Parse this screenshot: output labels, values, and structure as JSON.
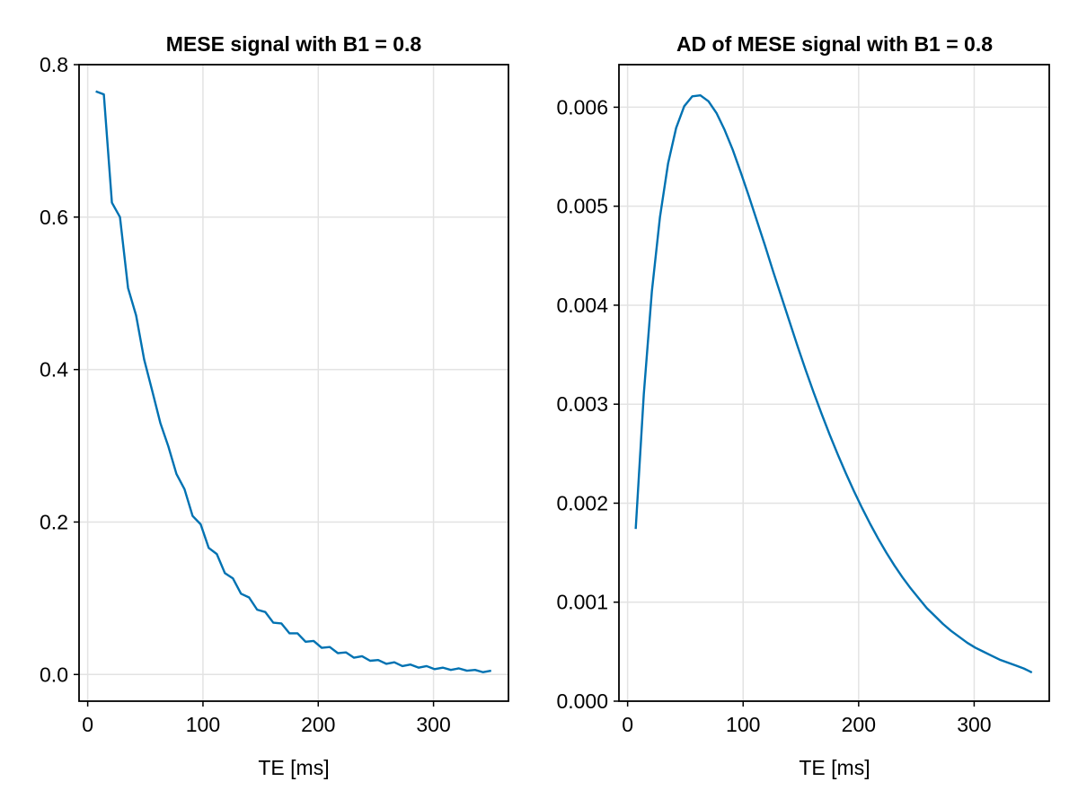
{
  "colors": {
    "series": "#0072b2"
  },
  "chart_data": [
    {
      "type": "line",
      "title": "MESE signal with B1 = 0.8",
      "xlabel": "TE [ms]",
      "ylabel": "",
      "xlim": [
        -7.5,
        365
      ],
      "ylim": [
        -0.035,
        0.8
      ],
      "xticks": [
        0,
        100,
        200,
        300
      ],
      "xtick_labels": [
        "0",
        "100",
        "200",
        "300"
      ],
      "yticks": [
        0.0,
        0.2,
        0.4,
        0.6,
        0.8
      ],
      "ytick_labels": [
        "0.0",
        "0.2",
        "0.4",
        "0.6",
        "0.8"
      ],
      "grid": true,
      "series": [
        {
          "x": [
            7,
            14,
            21,
            28,
            35,
            42,
            49,
            56,
            63,
            70,
            77,
            84,
            91,
            98,
            105,
            112,
            119,
            126,
            133,
            140,
            147,
            154,
            161,
            168,
            175,
            182,
            189,
            196,
            203,
            210,
            217,
            224,
            231,
            238,
            245,
            252,
            259,
            266,
            273,
            280,
            287,
            294,
            301,
            308,
            315,
            322,
            329,
            336,
            343,
            350
          ],
          "y": [
            0.765,
            0.761,
            0.619,
            0.6,
            0.507,
            0.471,
            0.413,
            0.372,
            0.33,
            0.299,
            0.263,
            0.243,
            0.208,
            0.197,
            0.166,
            0.158,
            0.133,
            0.126,
            0.106,
            0.101,
            0.085,
            0.082,
            0.068,
            0.067,
            0.054,
            0.054,
            0.043,
            0.044,
            0.035,
            0.036,
            0.028,
            0.029,
            0.022,
            0.024,
            0.018,
            0.019,
            0.014,
            0.016,
            0.011,
            0.013,
            0.009,
            0.011,
            0.007,
            0.009,
            0.006,
            0.008,
            0.005,
            0.006,
            0.003,
            0.005
          ]
        }
      ]
    },
    {
      "type": "line",
      "title": "AD of MESE signal with B1 = 0.8",
      "xlabel": "TE [ms]",
      "ylabel": "",
      "xlim": [
        -7.5,
        365
      ],
      "ylim": [
        0.0,
        0.00643
      ],
      "xticks": [
        0,
        100,
        200,
        300
      ],
      "xtick_labels": [
        "0",
        "100",
        "200",
        "300"
      ],
      "yticks": [
        0.0,
        0.001,
        0.002,
        0.003,
        0.004,
        0.005,
        0.006
      ],
      "ytick_labels": [
        "0.000",
        "0.001",
        "0.002",
        "0.003",
        "0.004",
        "0.005",
        "0.006"
      ],
      "grid": true,
      "series": [
        {
          "x": [
            7,
            14,
            21,
            28,
            35,
            42,
            49,
            56,
            63,
            70,
            77,
            84,
            91,
            98,
            105,
            112,
            119,
            126,
            133,
            140,
            147,
            154,
            161,
            168,
            175,
            182,
            189,
            196,
            203,
            210,
            217,
            224,
            231,
            238,
            245,
            252,
            259,
            266,
            273,
            280,
            287,
            294,
            301,
            308,
            315,
            322,
            329,
            336,
            343,
            350
          ],
          "y": [
            0.00174,
            0.0031,
            0.00414,
            0.00489,
            0.00543,
            0.00579,
            0.00601,
            0.00611,
            0.00612,
            0.00606,
            0.00594,
            0.00577,
            0.00557,
            0.00534,
            0.0051,
            0.00485,
            0.0046,
            0.00434,
            0.00409,
            0.00384,
            0.00359,
            0.00335,
            0.00312,
            0.0029,
            0.00269,
            0.00249,
            0.0023,
            0.00212,
            0.00195,
            0.00179,
            0.00164,
            0.0015,
            0.00137,
            0.00125,
            0.00114,
            0.00104,
            0.00094,
            0.00086,
            0.00078,
            0.00071,
            0.00065,
            0.00059,
            0.00054,
            0.0005,
            0.00046,
            0.00042,
            0.00039,
            0.00036,
            0.00033,
            0.00029
          ]
        }
      ]
    }
  ]
}
